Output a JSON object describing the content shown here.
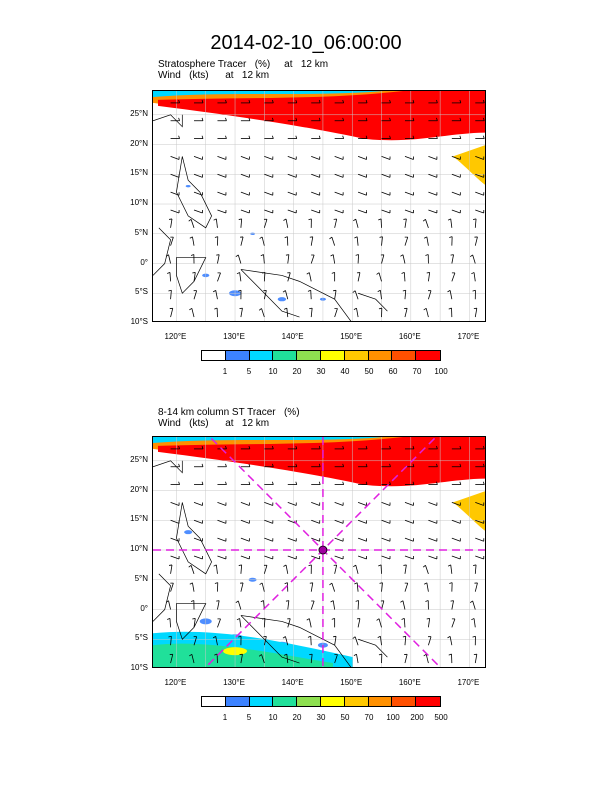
{
  "title": "2014-02-10_06:00:00",
  "panels": [
    {
      "subtitle_line1": "Stratosphere Tracer   (%)     at   12 km",
      "subtitle_line2": "Wind   (kts)      at   12 km",
      "lat_labels": [
        "25°N",
        "20°N",
        "15°N",
        "10°N",
        "5°N",
        "0°",
        "5°S",
        "10°S"
      ],
      "lon_labels": [
        "120°E",
        "130°E",
        "140°E",
        "150°E",
        "160°E",
        "170°E"
      ],
      "colorbar_labels": [
        "1",
        "5",
        "10",
        "20",
        "30",
        "40",
        "50",
        "60",
        "70",
        "100"
      ],
      "colorbar_colors": [
        "#ffffff",
        "#3c82ff",
        "#00d8ff",
        "#20e09a",
        "#8ee050",
        "#ffff00",
        "#ffc800",
        "#ff9000",
        "#ff5000",
        "#ff0000"
      ],
      "has_cross": false
    },
    {
      "subtitle_line1": "8-14 km column ST Tracer   (%)",
      "subtitle_line2": "Wind   (kts)      at   12 km",
      "lat_labels": [
        "25°N",
        "20°N",
        "15°N",
        "10°N",
        "5°N",
        "0°",
        "5°S",
        "10°S"
      ],
      "lon_labels": [
        "120°E",
        "130°E",
        "140°E",
        "150°E",
        "160°E",
        "170°E"
      ],
      "colorbar_labels": [
        "1",
        "5",
        "10",
        "20",
        "30",
        "50",
        "70",
        "100",
        "200",
        "500"
      ],
      "colorbar_colors": [
        "#ffffff",
        "#3c82ff",
        "#00d8ff",
        "#20e09a",
        "#8ee050",
        "#ffff00",
        "#ffc800",
        "#ff9000",
        "#ff5000",
        "#ff0000"
      ],
      "has_cross": true
    }
  ]
}
